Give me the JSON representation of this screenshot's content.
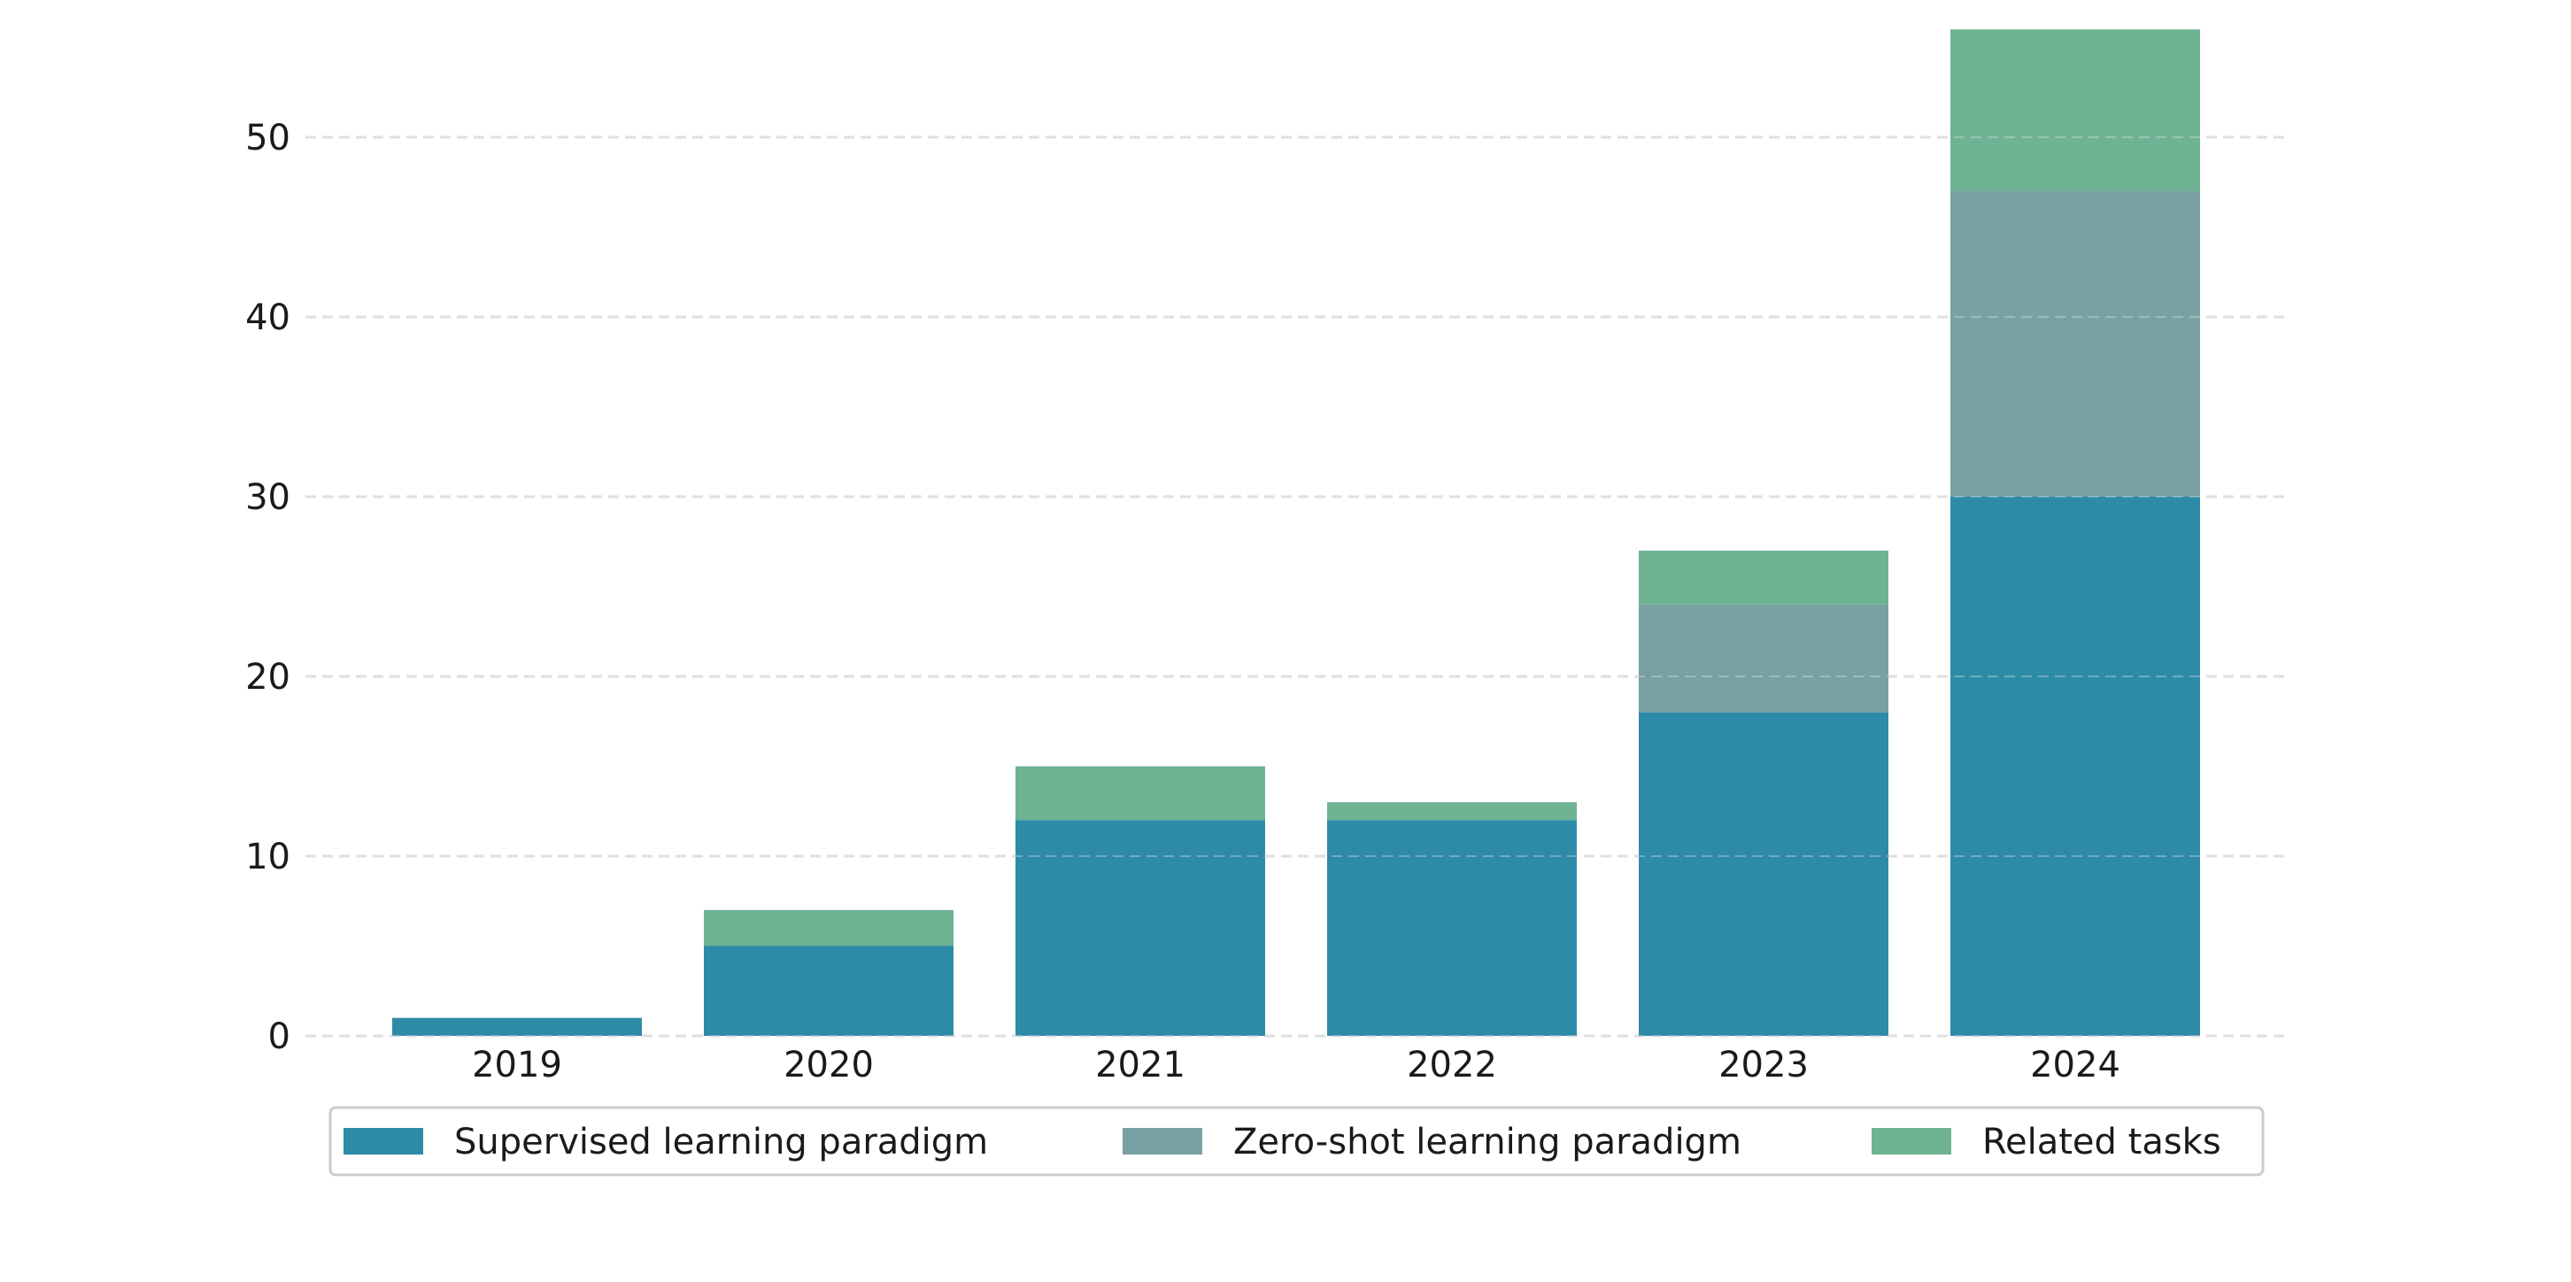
{
  "chart_data": {
    "type": "bar",
    "stacked": true,
    "categories": [
      "2019",
      "2020",
      "2021",
      "2022",
      "2023",
      "2024"
    ],
    "series": [
      {
        "name": "Supervised learning paradigm",
        "values": [
          1,
          5,
          12,
          12,
          18,
          30
        ],
        "color": "#2e8ba8"
      },
      {
        "name": "Zero-shot learning paradigm",
        "values": [
          0,
          0,
          0,
          0,
          6,
          17
        ],
        "color": "#79a0a2"
      },
      {
        "name": "Related tasks",
        "values": [
          0,
          2,
          3,
          1,
          3,
          9
        ],
        "color": "#6db394"
      }
    ],
    "ylim": [
      0,
      56
    ],
    "yticks": [
      0,
      10,
      20,
      30,
      40,
      50
    ],
    "ytick_labels": [
      "0",
      "10",
      "20",
      "30",
      "40",
      "50"
    ],
    "grid": "horizontal dashed",
    "legend": "bottom"
  }
}
